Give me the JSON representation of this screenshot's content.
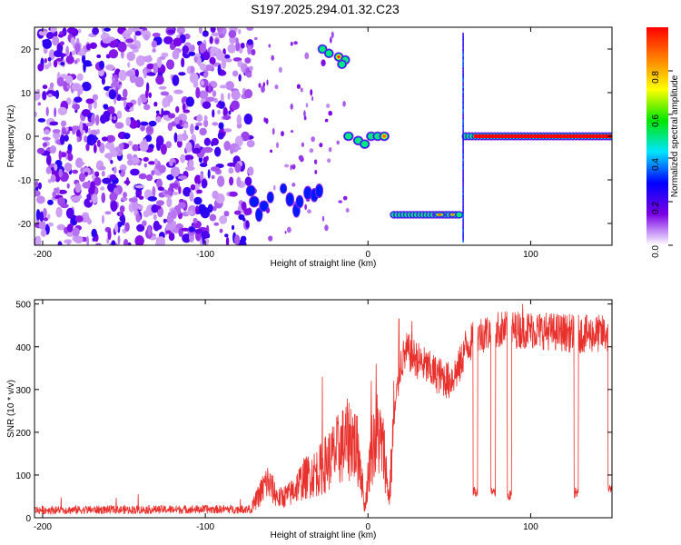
{
  "figure_title": "S197.2025.294.01.32.C23",
  "chart_data": [
    {
      "type": "heatmap",
      "title": "S197.2025.294.01.32.C23",
      "xlabel": "Height of straight line (km)",
      "ylabel": "Frequency (Hz)",
      "xlim": [
        -205,
        150
      ],
      "ylim": [
        -25,
        25
      ],
      "xticks": [
        -200,
        -100,
        0,
        100
      ],
      "yticks": [
        -20,
        -10,
        0,
        10,
        20
      ],
      "colorbar": {
        "label": "Normalized spectral amplitude",
        "range": [
          0.0,
          1.0
        ],
        "ticks": [
          "0.0",
          "0.2",
          "0.4",
          "0.6",
          "0.8"
        ],
        "tick_values": [
          0.0,
          0.2,
          0.4,
          0.6,
          0.8
        ],
        "colormap": [
          "#ffffff",
          "#7a00e6",
          "#0000ff",
          "#00e5ff",
          "#00e600",
          "#ffff00",
          "#ff8000",
          "#ff0000"
        ]
      },
      "features": [
        {
          "name": "noise",
          "x_range": [
            -205,
            -72
          ],
          "y_range": [
            -25,
            25
          ],
          "peak": 0.2
        },
        {
          "name": "lower-track",
          "x_range": [
            -74,
            -28
          ],
          "y_range": [
            -19,
            -11
          ],
          "peak": 0.45
        },
        {
          "name": "upper-blob",
          "x_range": [
            -32,
            -12
          ],
          "y_range": [
            16,
            21
          ],
          "peak": 1.0
        },
        {
          "name": "mid-band",
          "x_range": [
            -14,
            14
          ],
          "y_range": [
            -2,
            1
          ],
          "peak": 0.9
        },
        {
          "name": "low-band",
          "x_range": [
            14,
            58
          ],
          "y_range": [
            -19,
            -17
          ],
          "peak": 1.0
        },
        {
          "name": "right-band",
          "x_range": [
            58,
            150
          ],
          "y_range": [
            -0.5,
            0.5
          ],
          "peak": 1.0
        }
      ]
    },
    {
      "type": "line",
      "xlabel": "Height of straight line (km)",
      "ylabel": "SNR (10 * v/v)",
      "xlim": [
        -205,
        150
      ],
      "ylim": [
        0,
        510
      ],
      "xticks": [
        -200,
        -100,
        0,
        100
      ],
      "yticks": [
        0,
        100,
        200,
        300,
        400,
        500
      ],
      "color": "#e8302c",
      "envelope": [
        [
          -205,
          18
        ],
        [
          -72,
          20
        ],
        [
          -62,
          85
        ],
        [
          -55,
          45
        ],
        [
          -48,
          55
        ],
        [
          -40,
          90
        ],
        [
          -30,
          110
        ],
        [
          -25,
          130
        ],
        [
          -18,
          160
        ],
        [
          -10,
          190
        ],
        [
          -5,
          140
        ],
        [
          -2,
          20
        ],
        [
          2,
          160
        ],
        [
          6,
          200
        ],
        [
          10,
          150
        ],
        [
          13,
          40
        ],
        [
          16,
          230
        ],
        [
          20,
          360
        ],
        [
          24,
          390
        ],
        [
          30,
          370
        ],
        [
          40,
          340
        ],
        [
          50,
          320
        ],
        [
          56,
          350
        ],
        [
          60,
          400
        ],
        [
          70,
          430
        ],
        [
          80,
          440
        ],
        [
          100,
          440
        ],
        [
          130,
          430
        ],
        [
          150,
          430
        ]
      ],
      "spikes": [
        {
          "x": -28,
          "y": 330
        },
        {
          "x": 2,
          "y": 320
        },
        {
          "x": 5,
          "y": 360
        },
        {
          "x": 19,
          "y": 465
        },
        {
          "x": 27,
          "y": 460
        },
        {
          "x": 65,
          "y": 480
        },
        {
          "x": 78,
          "y": 510
        },
        {
          "x": 95,
          "y": 500
        }
      ],
      "dropouts": [
        {
          "x": 66,
          "y": 50
        },
        {
          "x": 77,
          "y": 45
        },
        {
          "x": 87,
          "y": 40
        },
        {
          "x": 128,
          "y": 45
        },
        {
          "x": 149,
          "y": 55
        }
      ]
    }
  ]
}
